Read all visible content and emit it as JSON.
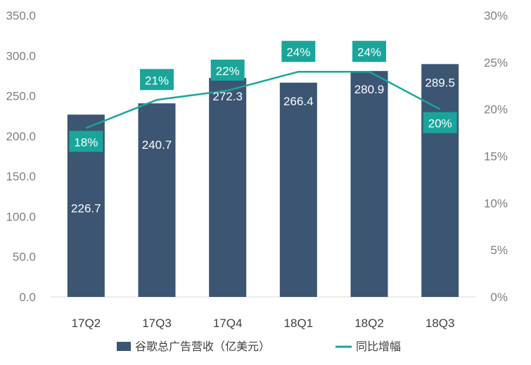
{
  "chart_data": {
    "type": "bar",
    "categories": [
      "17Q2",
      "17Q3",
      "17Q4",
      "18Q1",
      "18Q2",
      "18Q3"
    ],
    "series": [
      {
        "name": "谷歌总广告营收（亿美元）",
        "kind": "bar",
        "axis": "left",
        "values": [
          226.7,
          240.7,
          272.3,
          266.4,
          280.9,
          289.5
        ],
        "labels": [
          "226.7",
          "240.7",
          "272.3",
          "266.4",
          "280.9",
          "289.5"
        ]
      },
      {
        "name": "同比增幅",
        "kind": "line",
        "axis": "right",
        "values": [
          18,
          21,
          22,
          24,
          24,
          20
        ],
        "labels": [
          "18%",
          "21%",
          "22%",
          "24%",
          "24%",
          "20%"
        ]
      }
    ],
    "y_left": {
      "lim": [
        0,
        350
      ],
      "ticks": [
        "0.0",
        "50.0",
        "100.0",
        "150.0",
        "200.0",
        "250.0",
        "300.0",
        "350.0"
      ]
    },
    "y_right": {
      "lim": [
        0,
        30
      ],
      "ticks": [
        "0%",
        "5%",
        "10%",
        "15%",
        "20%",
        "25%",
        "30%"
      ]
    },
    "legend_position": "bottom",
    "grid": false,
    "colors": {
      "bar": "#3b5573",
      "line": "#1aa59a",
      "label_box": "#1aa59a"
    }
  }
}
